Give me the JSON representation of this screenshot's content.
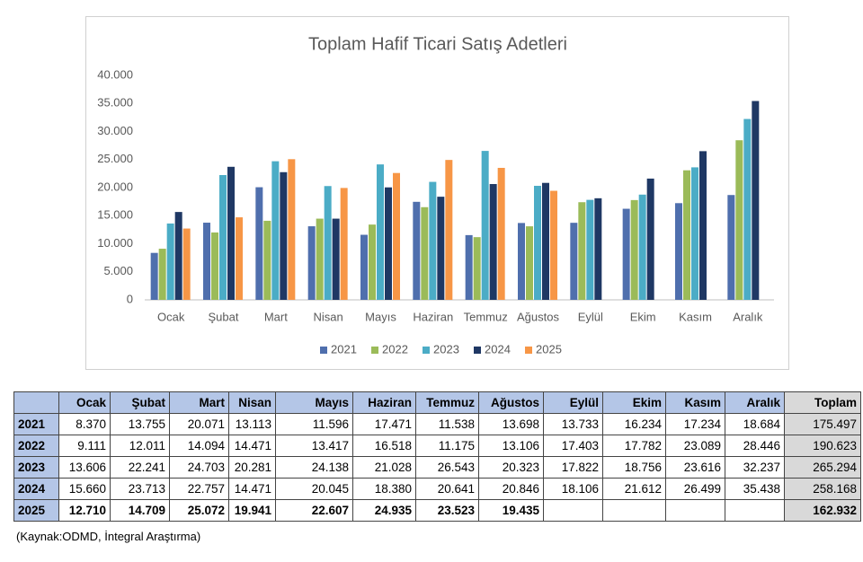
{
  "chart_data": {
    "type": "bar",
    "title": "Toplam Hafif Ticari Satış Adetleri",
    "categories": [
      "Ocak",
      "Şubat",
      "Mart",
      "Nisan",
      "Mayıs",
      "Haziran",
      "Temmuz",
      "Ağustos",
      "Eylül",
      "Ekim",
      "Kasım",
      "Aralık"
    ],
    "series": [
      {
        "name": "2021",
        "color": "#4f6fad",
        "values": [
          8370,
          13755,
          20071,
          13113,
          11596,
          17471,
          11538,
          13698,
          13733,
          16234,
          17234,
          18684
        ]
      },
      {
        "name": "2022",
        "color": "#9bbb59",
        "values": [
          9111,
          12011,
          14094,
          14471,
          13417,
          16518,
          11175,
          13106,
          17403,
          17782,
          23089,
          28446
        ]
      },
      {
        "name": "2023",
        "color": "#4bacc6",
        "values": [
          13606,
          22241,
          24703,
          20281,
          24138,
          21028,
          26543,
          20323,
          17822,
          18756,
          23616,
          32237
        ]
      },
      {
        "name": "2024",
        "color": "#1f3864",
        "values": [
          15660,
          23713,
          22757,
          14471,
          20045,
          18380,
          20641,
          20846,
          18106,
          21612,
          26499,
          35438
        ]
      },
      {
        "name": "2025",
        "color": "#f79646",
        "values": [
          12710,
          14709,
          25072,
          19941,
          22607,
          24935,
          23523,
          19435,
          null,
          null,
          null,
          null
        ]
      }
    ],
    "ylim": [
      0,
      40000
    ],
    "yticks": [
      0,
      {
        "value": 5000,
        "label": "5.000"
      },
      {
        "value": 10000,
        "label": "10.000"
      },
      {
        "value": 15000,
        "label": "15.000"
      },
      {
        "value": 20000,
        "label": "20.000"
      },
      {
        "value": 25000,
        "label": "25.000"
      },
      {
        "value": 30000,
        "label": "30.000"
      },
      {
        "value": 35000,
        "label": "35.000"
      },
      {
        "value": 40000,
        "label": "40.000"
      }
    ],
    "grid": false,
    "legend": "bottom"
  },
  "table": {
    "header": [
      "Ocak",
      "Şubat",
      "Mart",
      "Nisan",
      "Mayıs",
      "Haziran",
      "Temmuz",
      "Ağustos",
      "Eylül",
      "Ekim",
      "Kasım",
      "Aralık",
      "Toplam"
    ],
    "rows": [
      {
        "year": "2021",
        "values": [
          "8.370",
          "13.755",
          "20.071",
          "13.113",
          "11.596",
          "17.471",
          "11.538",
          "13.698",
          "13.733",
          "16.234",
          "17.234",
          "18.684"
        ],
        "total": "175.497"
      },
      {
        "year": "2022",
        "values": [
          "9.111",
          "12.011",
          "14.094",
          "14.471",
          "13.417",
          "16.518",
          "11.175",
          "13.106",
          "17.403",
          "17.782",
          "23.089",
          "28.446"
        ],
        "total": "190.623"
      },
      {
        "year": "2023",
        "values": [
          "13.606",
          "22.241",
          "24.703",
          "20.281",
          "24.138",
          "21.028",
          "26.543",
          "20.323",
          "17.822",
          "18.756",
          "23.616",
          "32.237"
        ],
        "total": "265.294"
      },
      {
        "year": "2024",
        "values": [
          "15.660",
          "23.713",
          "22.757",
          "14.471",
          "20.045",
          "18.380",
          "20.641",
          "20.846",
          "18.106",
          "21.612",
          "26.499",
          "35.438"
        ],
        "total": "258.168"
      },
      {
        "year": "2025",
        "values": [
          "12.710",
          "14.709",
          "25.072",
          "19.941",
          "22.607",
          "24.935",
          "23.523",
          "19.435"
        ],
        "total": "162.932"
      }
    ]
  },
  "source": "(Kaynak:ODMD, İntegral Araştırma)"
}
